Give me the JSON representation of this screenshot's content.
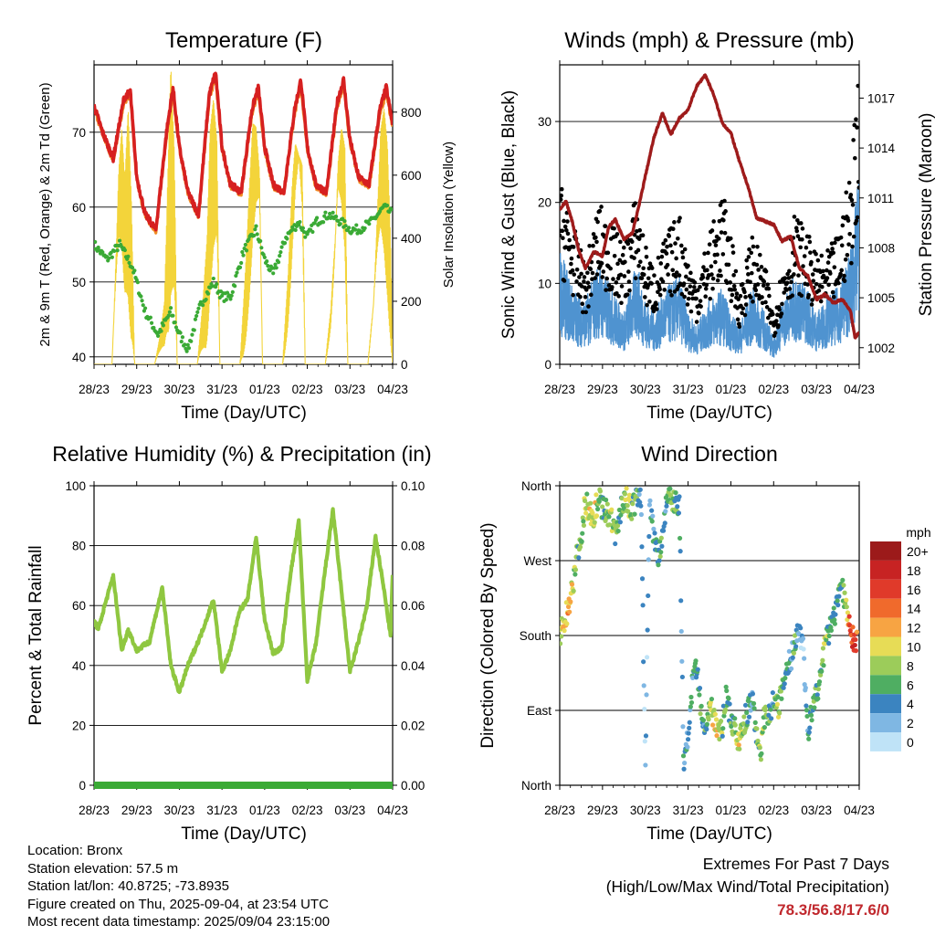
{
  "colors": {
    "t2m": "#d62020",
    "t9m": "#f08a24",
    "td": "#3aaa35",
    "solar": "#f3d43a",
    "gust": "#000000",
    "wind": "#4f93d0",
    "pressure": "#9e1b1b",
    "rh": "#8fc740",
    "precip": "#3aaa35",
    "extremes": "#c0282d"
  },
  "temp_panel": {
    "title": "Temperature (F)",
    "ylabel_left": "2m & 9m T (Red, Orange) & 2m Td (Green)",
    "ylabel_right": "Solar Insolation (Yellow)",
    "xlabel": "Time (Day/UTC)"
  },
  "wind_panel": {
    "title": "Winds (mph) & Pressure (mb)",
    "ylabel_left": "Sonic Wind & Gust (Blue, Black)",
    "ylabel_right": "Station Pressure (Maroon)",
    "xlabel": "Time (Day/UTC)"
  },
  "rh_panel": {
    "title": "Relative Humidity (%) & Precipitation (in)",
    "ylabel_left": "Percent & Total Rainfall",
    "xlabel": "Time (Day/UTC)"
  },
  "dir_panel": {
    "title": "Wind Direction",
    "ylabel_left": "Direction (Colored By Speed)",
    "xlabel": "Time (Day/UTC)",
    "legend_title": "mph",
    "legend_labels": [
      "20+",
      "18",
      "16",
      "14",
      "12",
      "10",
      "8",
      "6",
      "4",
      "2",
      "0"
    ],
    "legend_colors": [
      "#9c1a1a",
      "#c72323",
      "#e03a2a",
      "#f06a2c",
      "#f7a443",
      "#e7dc56",
      "#9ccc5a",
      "#4fae62",
      "#3b84c0",
      "#7fb7e3",
      "#bfe3f7"
    ]
  },
  "info": {
    "location": "Location: Bronx",
    "elevation": "Station elevation: 57.5 m",
    "latlon": "Station lat/lon: 40.8725; -73.8935",
    "created": "Figure created on Thu, 2025-09-04, at 23:54 UTC",
    "recent": "Most recent data timestamp: 2025/09/04 23:15:00"
  },
  "extremes": {
    "heading": "Extremes For Past 7 Days",
    "sub": "(High/Low/Max Wind/Total Precipitation)",
    "values": "78.3/56.8/17.6/0"
  },
  "chart_data": [
    {
      "type": "line",
      "title": "Temperature (F)",
      "xlabel": "Time (Day/UTC)",
      "ylabel": "2m & 9m T (Red, Orange) & 2m Td (Green)",
      "y2label": "Solar Insolation (Yellow)",
      "x_ticks": [
        "28/23",
        "29/23",
        "30/23",
        "31/23",
        "01/23",
        "02/23",
        "03/23",
        "04/23"
      ],
      "xlim": [
        0,
        7
      ],
      "ylim": [
        39,
        79
      ],
      "y_ticks": [
        40,
        50,
        60,
        70
      ],
      "y2lim": [
        0,
        950
      ],
      "y2_ticks": [
        0,
        200,
        400,
        600,
        800
      ],
      "grid": true,
      "series": [
        {
          "name": "2m T",
          "axis": "left",
          "x": [
            0,
            0.2,
            0.45,
            0.7,
            0.85,
            1.0,
            1.2,
            1.45,
            1.7,
            1.85,
            2.0,
            2.2,
            2.45,
            2.7,
            2.85,
            3.0,
            3.2,
            3.45,
            3.7,
            3.85,
            4.0,
            4.2,
            4.45,
            4.7,
            4.85,
            5.0,
            5.2,
            5.45,
            5.7,
            5.85,
            6.0,
            6.2,
            6.45,
            6.7,
            6.85,
            7.0
          ],
          "values": [
            73.5,
            70,
            66.5,
            74.5,
            75.5,
            64,
            59,
            57,
            70,
            76,
            68,
            62,
            59,
            75,
            78,
            68,
            63,
            62,
            73,
            76,
            68,
            63,
            62,
            73,
            77,
            68,
            63,
            62,
            74,
            77,
            69,
            64,
            63,
            73,
            76,
            71
          ]
        },
        {
          "name": "9m T",
          "axis": "left",
          "x": [
            0,
            0.2,
            0.45,
            0.7,
            0.85,
            1.0,
            1.2,
            1.45,
            1.7,
            1.85,
            2.0,
            2.2,
            2.45,
            2.7,
            2.85,
            3.0,
            3.2,
            3.45,
            3.7,
            3.85,
            4.0,
            4.2,
            4.45,
            4.7,
            4.85,
            5.0,
            5.2,
            5.45,
            5.7,
            5.85,
            6.0,
            6.2,
            6.45,
            6.7,
            6.85,
            7.0
          ],
          "values": [
            73.2,
            69.8,
            66.3,
            74,
            75,
            63.8,
            58.8,
            56.9,
            69.5,
            75.3,
            67.8,
            61.8,
            58.8,
            74.5,
            77.3,
            67.8,
            62.8,
            61.8,
            72.5,
            75.3,
            67.8,
            62.8,
            61.8,
            72.5,
            76.3,
            67.8,
            62.8,
            61.8,
            73.5,
            76.3,
            68.8,
            63.8,
            62.8,
            72.5,
            75.3,
            70.8
          ]
        },
        {
          "name": "2m Td",
          "axis": "left",
          "x": [
            0,
            0.3,
            0.6,
            0.9,
            1.2,
            1.5,
            1.8,
            2.0,
            2.2,
            2.5,
            2.8,
            3.0,
            3.2,
            3.5,
            3.8,
            4.0,
            4.2,
            4.5,
            4.8,
            5.0,
            5.2,
            5.5,
            5.8,
            6.0,
            6.2,
            6.5,
            6.8,
            7.0
          ],
          "values": [
            55,
            53,
            55,
            52,
            46,
            43,
            46,
            43,
            41,
            47,
            50,
            48,
            48,
            54,
            57,
            53,
            51,
            56,
            58,
            56,
            58,
            59,
            58,
            57,
            57,
            58,
            60,
            59
          ]
        },
        {
          "name": "Solar Insolation",
          "axis": "right",
          "x": [
            0,
            0.42,
            0.5,
            0.58,
            0.65,
            0.72,
            0.8,
            0.88,
            0.95,
            1.1,
            1.42,
            1.55,
            1.65,
            1.72,
            1.8,
            1.88,
            1.95,
            2.1,
            2.42,
            2.55,
            2.65,
            2.72,
            2.8,
            2.88,
            2.95,
            3.1,
            3.42,
            3.55,
            3.65,
            3.72,
            3.8,
            3.88,
            3.95,
            4.1,
            4.42,
            4.55,
            4.65,
            4.72,
            4.8,
            4.88,
            4.95,
            5.1,
            5.42,
            5.55,
            5.65,
            5.72,
            5.8,
            5.88,
            5.95,
            6.1,
            6.42,
            6.55,
            6.65,
            6.72,
            6.8,
            6.88,
            6.95,
            7.0
          ],
          "values": [
            0,
            0,
            350,
            700,
            800,
            600,
            820,
            500,
            0,
            0,
            0,
            100,
            200,
            550,
            950,
            700,
            0,
            0,
            0,
            200,
            400,
            750,
            880,
            780,
            0,
            0,
            0,
            300,
            600,
            820,
            860,
            760,
            0,
            0,
            0,
            300,
            650,
            840,
            880,
            760,
            0,
            0,
            0,
            200,
            500,
            800,
            860,
            740,
            0,
            0,
            0,
            250,
            600,
            820,
            850,
            700,
            400,
            0
          ]
        }
      ]
    },
    {
      "type": "line",
      "title": "Winds (mph) & Pressure (mb)",
      "xlabel": "Time (Day/UTC)",
      "ylabel": "Sonic Wind & Gust (Blue, Black)",
      "y2label": "Station Pressure (Maroon)",
      "x_ticks": [
        "28/23",
        "29/23",
        "30/23",
        "31/23",
        "01/23",
        "02/23",
        "03/23",
        "04/23"
      ],
      "xlim": [
        0,
        7
      ],
      "ylim": [
        0,
        37
      ],
      "y_ticks": [
        0,
        10,
        20,
        30
      ],
      "y2lim": [
        1001,
        1019
      ],
      "y2_ticks": [
        1002,
        1005,
        1008,
        1011,
        1014,
        1017
      ],
      "grid": true,
      "series": [
        {
          "name": "Wind",
          "axis": "left",
          "x": [
            0,
            0.3,
            0.6,
            0.9,
            1.2,
            1.5,
            1.8,
            2.0,
            2.2,
            2.5,
            2.8,
            3.0,
            3.2,
            3.5,
            3.8,
            4.0,
            4.2,
            4.5,
            4.8,
            5.0,
            5.2,
            5.5,
            5.8,
            6.0,
            6.2,
            6.5,
            6.8,
            7.0
          ],
          "values": [
            9,
            6,
            5,
            8,
            6,
            4,
            8,
            5,
            4,
            6,
            7,
            4,
            3,
            5,
            6,
            4,
            3,
            6,
            4,
            2,
            5,
            7,
            6,
            4,
            5,
            6,
            9,
            15
          ]
        },
        {
          "name": "Gust",
          "axis": "left",
          "x": [
            0,
            0.3,
            0.6,
            0.9,
            1.2,
            1.5,
            1.8,
            2.0,
            2.2,
            2.5,
            2.8,
            3.0,
            3.2,
            3.5,
            3.8,
            4.0,
            4.2,
            4.5,
            4.8,
            5.0,
            5.2,
            5.5,
            5.8,
            6.0,
            6.2,
            6.5,
            6.8,
            7.0
          ],
          "values": [
            17,
            13,
            9,
            15,
            13,
            11,
            16,
            11,
            9,
            12,
            14,
            10,
            8,
            12,
            16,
            12,
            7,
            12,
            9,
            5,
            9,
            14,
            12,
            10,
            10,
            12,
            18,
            30
          ]
        },
        {
          "name": "Pressure",
          "axis": "right",
          "x": [
            0,
            0.15,
            0.3,
            0.45,
            0.6,
            0.8,
            1.0,
            1.15,
            1.3,
            1.5,
            1.7,
            1.85,
            2.0,
            2.2,
            2.4,
            2.6,
            2.8,
            3.0,
            3.2,
            3.4,
            3.6,
            3.8,
            4.0,
            4.2,
            4.4,
            4.6,
            4.8,
            5.0,
            5.2,
            5.4,
            5.6,
            5.8,
            6.0,
            6.2,
            6.4,
            6.6,
            6.8,
            6.9,
            7.0
          ],
          "values": [
            1010.3,
            1010.8,
            1009.5,
            1007.8,
            1006.8,
            1007.8,
            1007.5,
            1009.3,
            1009.7,
            1008.5,
            1008.9,
            1010.5,
            1012.3,
            1014.6,
            1016.1,
            1014.8,
            1015.8,
            1016.3,
            1017.7,
            1018.4,
            1017.2,
            1015.5,
            1014.9,
            1013.2,
            1011.7,
            1009.8,
            1009.6,
            1009.4,
            1008.4,
            1008.7,
            1006.8,
            1006.3,
            1004.9,
            1005.2,
            1004.7,
            1004.9,
            1004.2,
            1002.6,
            1002.9
          ]
        }
      ]
    },
    {
      "type": "line",
      "title": "Relative Humidity (%) & Precipitation (in)",
      "xlabel": "Time (Day/UTC)",
      "ylabel": "Percent & Total Rainfall",
      "x_ticks": [
        "28/23",
        "29/23",
        "30/23",
        "31/23",
        "01/23",
        "02/23",
        "03/23",
        "04/23"
      ],
      "xlim": [
        0,
        7
      ],
      "ylim": [
        0,
        100
      ],
      "y_ticks": [
        0,
        20,
        40,
        60,
        80,
        100
      ],
      "y2lim": [
        0,
        0.1
      ],
      "y2_ticks": [
        0.0,
        0.02,
        0.04,
        0.06,
        0.08,
        0.1
      ],
      "grid": true,
      "series": [
        {
          "name": "RH",
          "axis": "left",
          "x": [
            0,
            0.1,
            0.25,
            0.45,
            0.65,
            0.8,
            1.0,
            1.3,
            1.6,
            1.8,
            2.0,
            2.2,
            2.5,
            2.8,
            3.0,
            3.2,
            3.4,
            3.6,
            3.8,
            4.0,
            4.2,
            4.4,
            4.6,
            4.8,
            5.0,
            5.2,
            5.4,
            5.6,
            5.8,
            6.0,
            6.2,
            6.4,
            6.6,
            6.8,
            6.95,
            7.0
          ],
          "values": [
            55,
            52,
            60,
            70,
            45,
            52,
            45,
            48,
            66,
            40,
            31,
            40,
            50,
            62,
            38,
            45,
            58,
            62,
            83,
            55,
            44,
            46,
            70,
            88,
            35,
            47,
            70,
            92,
            65,
            38,
            48,
            60,
            83,
            65,
            50,
            70
          ]
        },
        {
          "name": "Total Rainfall",
          "axis": "right",
          "x": [
            0,
            7
          ],
          "values": [
            0,
            0
          ]
        }
      ]
    },
    {
      "type": "scatter",
      "title": "Wind Direction",
      "xlabel": "Time (Day/UTC)",
      "ylabel": "Direction (Colored By Speed)",
      "x_ticks": [
        "28/23",
        "29/23",
        "30/23",
        "31/23",
        "01/23",
        "02/23",
        "03/23",
        "04/23"
      ],
      "xlim": [
        0,
        7
      ],
      "ylim": [
        0,
        360
      ],
      "y_tick_labels": [
        "North",
        "East",
        "South",
        "West",
        "North"
      ],
      "y_ticks": [
        0,
        90,
        180,
        270,
        360
      ],
      "grid": true,
      "series": [
        {
          "name": "Direction",
          "x": [
            0.0,
            0.1,
            0.2,
            0.3,
            0.4,
            0.5,
            0.6,
            0.7,
            0.8,
            0.9,
            1.0,
            1.1,
            1.2,
            1.3,
            1.4,
            1.5,
            1.6,
            1.7,
            1.8,
            1.9,
            2.0,
            2.1,
            2.2,
            2.3,
            2.4,
            2.5,
            2.6,
            2.7,
            2.8,
            2.9,
            3.0,
            3.1,
            3.2,
            3.3,
            3.4,
            3.5,
            3.6,
            3.7,
            3.8,
            3.9,
            4.0,
            4.1,
            4.2,
            4.3,
            4.4,
            4.5,
            4.6,
            4.7,
            4.8,
            4.9,
            5.0,
            5.1,
            5.2,
            5.3,
            5.4,
            5.5,
            5.6,
            5.7,
            5.8,
            5.9,
            6.0,
            6.1,
            6.2,
            6.3,
            6.4,
            6.5,
            6.6,
            6.7,
            6.8,
            6.9
          ],
          "values": [
            180,
            195,
            215,
            240,
            275,
            300,
            340,
            330,
            325,
            345,
            335,
            330,
            320,
            300,
            325,
            345,
            340,
            330,
            345,
            350,
            15,
            340,
            300,
            275,
            300,
            345,
            350,
            340,
            335,
            15,
            60,
            120,
            140,
            90,
            60,
            95,
            85,
            70,
            70,
            110,
            80,
            65,
            50,
            75,
            90,
            100,
            65,
            40,
            90,
            85,
            100,
            95,
            110,
            140,
            150,
            175,
            190,
            160,
            60,
            90,
            110,
            130,
            170,
            185,
            200,
            225,
            245,
            210,
            180,
            175
          ],
          "speed_mph": [
            8,
            10,
            12,
            9,
            7,
            6,
            8,
            9,
            10,
            7,
            6,
            8,
            9,
            7,
            6,
            8,
            9,
            7,
            6,
            3,
            2,
            3,
            4,
            6,
            5,
            4,
            7,
            6,
            5,
            3,
            4,
            5,
            6,
            6,
            5,
            8,
            9,
            10,
            7,
            6,
            5,
            8,
            9,
            7,
            5,
            4,
            6,
            8,
            7,
            6,
            5,
            8,
            7,
            5,
            4,
            6,
            3,
            3,
            4,
            5,
            6,
            7,
            8,
            6,
            5,
            4,
            6,
            8,
            17,
            15
          ]
        }
      ]
    }
  ]
}
